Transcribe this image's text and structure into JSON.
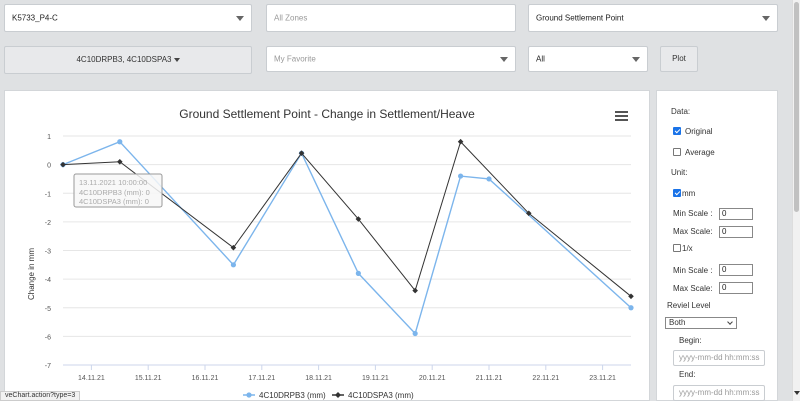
{
  "filters": {
    "project": "K5733_P4-C",
    "zones_placeholder": "All Zones",
    "point_type": "Ground Settlement Point",
    "instruments_label": "4C10DRPB3, 4C10DSPA3",
    "favorite_placeholder": "My Favorite",
    "scope": "All",
    "plot_label": "Plot"
  },
  "chart_data": {
    "type": "line",
    "title": "Ground Settlement Point - Change in Settlement/Heave",
    "ylabel": "Change in mm",
    "xlabel": "",
    "ylim": [
      -7,
      1
    ],
    "yticks": [
      1,
      0,
      -1,
      -2,
      -3,
      -4,
      -5,
      -6,
      -7
    ],
    "x_tick_labels": [
      "14.11.21",
      "15.11.21",
      "16.11.21",
      "17.11.21",
      "18.11.21",
      "19.11.21",
      "20.11.21",
      "21.11.21",
      "22.11.21",
      "23.11.21"
    ],
    "x": [
      0,
      1,
      3,
      4.2,
      5.2,
      6.2,
      7,
      7.5,
      8.2,
      10
    ],
    "series": [
      {
        "name": "4C10DRPB3 (mm)",
        "color": "#7cb5ec",
        "marker": "circle",
        "values": [
          0,
          0.8,
          -3.5,
          0.4,
          -3.8,
          -5.9,
          -0.4,
          -0.5,
          null,
          -5.0
        ]
      },
      {
        "name": "4C10DSPA3 (mm)",
        "color": "#333333",
        "marker": "diamond",
        "values": [
          0,
          0.1,
          -2.9,
          0.4,
          -1.9,
          -4.4,
          0.8,
          null,
          -1.7,
          -4.6
        ]
      }
    ],
    "grid": true,
    "legend": "bottom-center",
    "tooltip": {
      "date": "13.11.2021 10:00:00",
      "rows": [
        "4C10DRPB3 (mm): 0",
        "4C10DSPA3 (mm): 0"
      ]
    }
  },
  "options": {
    "data_label": "Data:",
    "original_label": "Original",
    "original_checked": true,
    "average_label": "Average",
    "average_checked": false,
    "unit_label": "Unit:",
    "mm_label": "mm",
    "mm_checked": true,
    "min_scale_label": "Min Scale :",
    "min_scale_value": "0",
    "max_scale_label": "Max Scale:",
    "max_scale_value": "0",
    "inverse_label": "1/x",
    "inverse_checked": false,
    "min_scale_label_2": "Min Scale :",
    "min_scale_value_2": "0",
    "max_scale_label_2": "Max Scale:",
    "max_scale_value_2": "0",
    "reviel_level_label": "Reviel Level",
    "reviel_level_value": "Both",
    "begin_label": "Begin:",
    "begin_placeholder": "yyyy-mm-dd hh:mm:ss",
    "end_label": "End:",
    "end_placeholder": "yyyy-mm-dd hh:mm:ss"
  },
  "status_url": "veChart.action?type=3"
}
